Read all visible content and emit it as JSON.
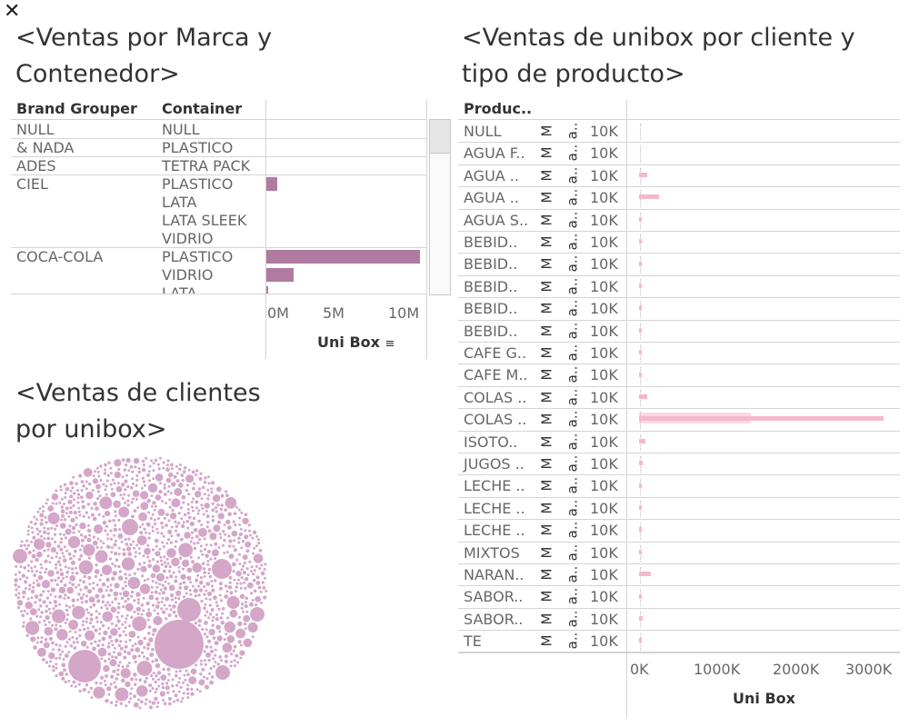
{
  "close_icon": "close-icon",
  "panel1": {
    "title_line1": "<Ventas por Marca y",
    "title_line2": "Contenedor>",
    "headers": {
      "brand": "Brand Grouper",
      "container": "Container"
    },
    "axis_label": "Uni Box",
    "ticks": [
      "0M",
      "5M",
      "10M"
    ]
  },
  "panel2": {
    "title_line1": "<Ventas de clientes",
    "title_line2": "por unibox>"
  },
  "panel3": {
    "title_line1": "<Ventas de unibox por cliente y",
    "title_line2": "tipo de producto>",
    "header": "Produc..",
    "col_m": "M",
    "col_a": "a..",
    "col_k": "10K",
    "axis_label": "Uni Box",
    "ticks": [
      "0K",
      "1000K",
      "2000K",
      "3000K"
    ]
  },
  "chart_data": [
    {
      "type": "bar",
      "title": "<Ventas por Marca y Contenedor>",
      "xlabel": "Uni Box",
      "xlim": [
        0,
        11500000
      ],
      "rows": [
        {
          "brand": "NULL",
          "container": "NULL",
          "value": 0
        },
        {
          "brand": "& NADA",
          "container": "PLASTICO",
          "value": 0
        },
        {
          "brand": "ADES",
          "container": "TETRA PACK",
          "value": 0
        },
        {
          "brand": "CIEL",
          "container": "PLASTICO",
          "value": 800000
        },
        {
          "brand": "",
          "container": "LATA",
          "value": 0
        },
        {
          "brand": "",
          "container": "LATA SLEEK",
          "value": 0
        },
        {
          "brand": "",
          "container": "VIDRIO",
          "value": 0
        },
        {
          "brand": "COCA-COLA",
          "container": "PLASTICO",
          "value": 11200000
        },
        {
          "brand": "",
          "container": "VIDRIO",
          "value": 2000000
        },
        {
          "brand": "",
          "container": "LATA",
          "value": 150000
        }
      ]
    },
    {
      "type": "scatter",
      "title": "<Ventas de clientes por unibox>",
      "description": "packed bubbles"
    },
    {
      "type": "bar",
      "title": "<Ventas de unibox por cliente y tipo de producto>",
      "xlabel": "Uni Box",
      "xlim": [
        -150000,
        3300000
      ],
      "categories": [
        "NULL",
        "AGUA F..",
        "AGUA ..",
        "AGUA ..",
        "AGUA S..",
        "BEBID..",
        "BEBID..",
        "BEBID..",
        "BEBID..",
        "BEBID..",
        "CAFE G..",
        "CAFE M..",
        "COLAS ..",
        "COLAS ..",
        "ISOTO..",
        "JUGOS ..",
        "LECHE ..",
        "LECHE ..",
        "LECHE ..",
        "MIXTOS",
        "NARAN..",
        "SABOR..",
        "SABOR..",
        "TE"
      ],
      "max_values": [
        0,
        0,
        100000,
        250000,
        20000,
        10000,
        20000,
        15000,
        10000,
        30000,
        20000,
        5000,
        100000,
        3050000,
        80000,
        40000,
        30000,
        20000,
        20000,
        20000,
        150000,
        30000,
        50000,
        30000
      ]
    }
  ]
}
